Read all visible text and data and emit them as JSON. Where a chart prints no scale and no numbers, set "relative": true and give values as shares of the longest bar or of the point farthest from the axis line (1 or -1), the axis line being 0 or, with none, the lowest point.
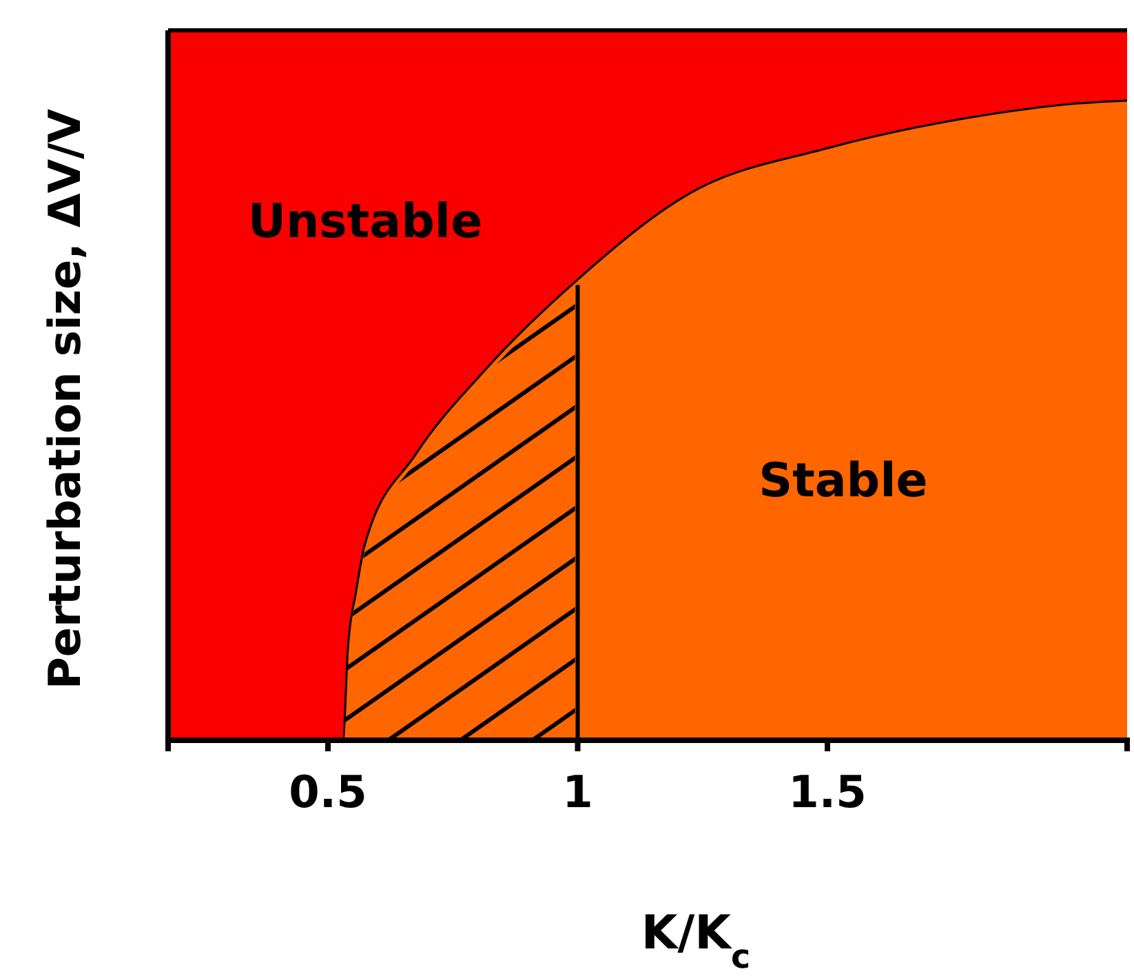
{
  "chart_data": {
    "type": "area",
    "relative": true,
    "stacked": true,
    "xlabel": "K/K$_{c}$",
    "ylabel": "Perturbation size, ΔV/V",
    "x": [
      0.18,
      0.53,
      0.54,
      0.556,
      0.574,
      0.675,
      0.81,
      1,
      1.226,
      1.5,
      1.775,
      2.0,
      2.1
    ],
    "xlim": [
      0.18,
      2.1
    ],
    "xticks": [
      0.5,
      1,
      1.5
    ],
    "series": [
      {
        "color": "#ff6600",
        "values": [
          0,
          0,
          0.13,
          0.208,
          0.276,
          0.402,
          0.518,
          0.649,
          0.771,
          0.834,
          0.876,
          0.897,
          0.901
        ]
      },
      {
        "color": "#fa0000",
        "values": [
          1,
          1,
          0.87,
          0.792,
          0.724,
          0.598,
          0.482,
          0.351,
          0.229,
          0.166,
          0.124,
          0.103,
          0.099
        ]
      }
    ],
    "ref_lines": [
      {
        "axis": "x",
        "value": 1,
        "color": "#000000"
      }
    ],
    "annotations": [
      "Unstable",
      "Stable"
    ]
  }
}
